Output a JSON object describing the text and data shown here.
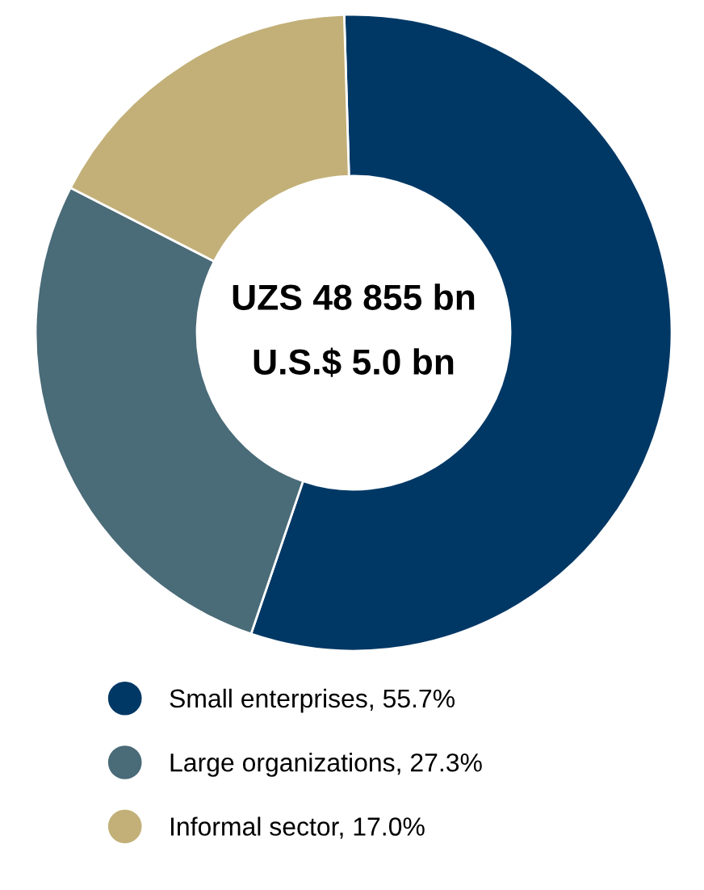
{
  "chart_data": {
    "type": "donut",
    "categories": [
      "Small enterprises, 55.7%",
      "Large organizations, 27.3%",
      "Informal sector, 17.0%"
    ],
    "values": [
      55.7,
      27.3,
      17.0
    ],
    "colors": [
      "#003865",
      "#4a6b78",
      "#c2b078"
    ],
    "annotations": [
      "UZS 48 855 bn",
      "U.S.$ 5.0 bn"
    ],
    "legend": "bottom"
  }
}
